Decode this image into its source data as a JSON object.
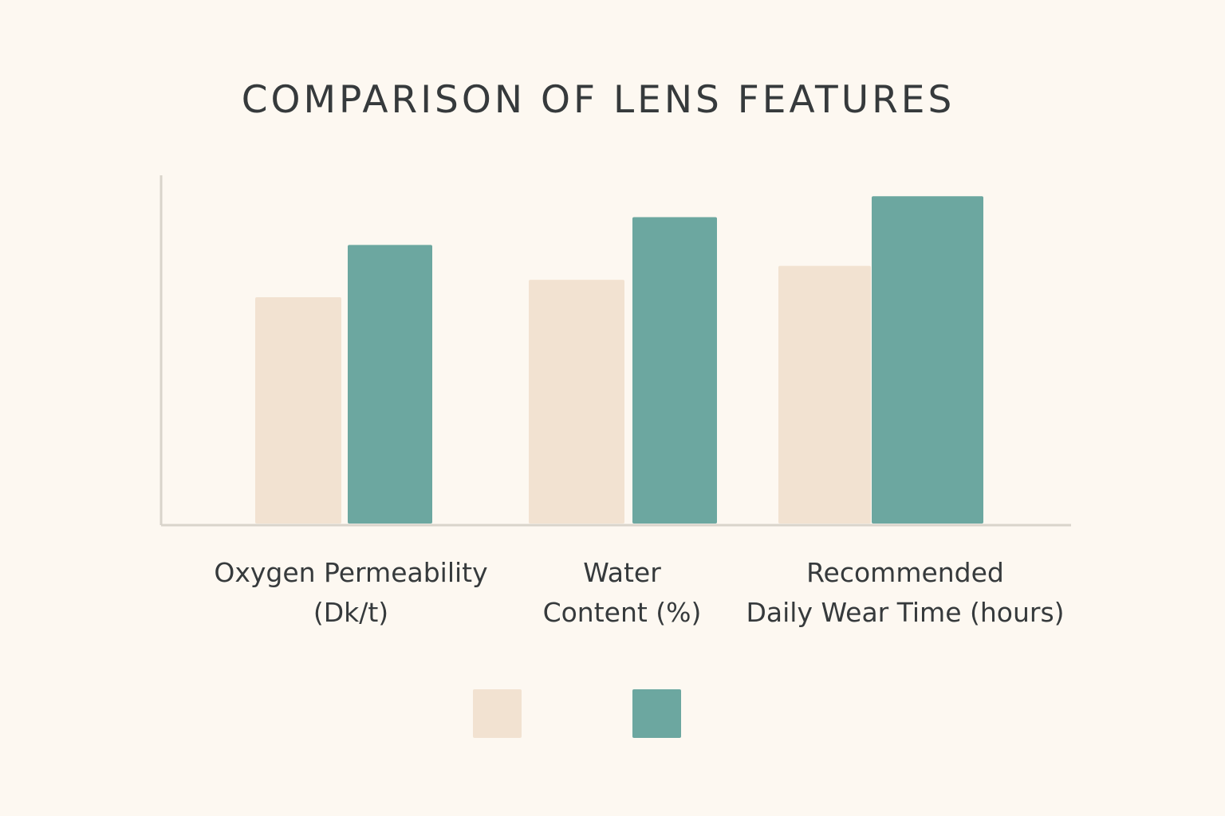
{
  "chart_data": {
    "type": "bar",
    "title": "COMPARISON OF LENS FEATURES",
    "categories": [
      [
        "Oxygen Permeability",
        "(Dk/t)"
      ],
      [
        "Water",
        "Content (%)"
      ],
      [
        "Recommended",
        "Daily Wear Time (hours)"
      ]
    ],
    "series": [
      {
        "values": [
          65,
          70,
          74
        ],
        "color": "#f2e2d1"
      },
      {
        "values": [
          80,
          88,
          94
        ],
        "color": "#6ca7a0"
      }
    ],
    "ylim": [
      0,
      100
    ],
    "xlabel": "",
    "ylabel": "",
    "grid": false,
    "legend": {
      "position": "bottom-center",
      "entries": [
        {
          "color": "#f2e2d1"
        },
        {
          "color": "#6ca7a0"
        }
      ]
    }
  }
}
